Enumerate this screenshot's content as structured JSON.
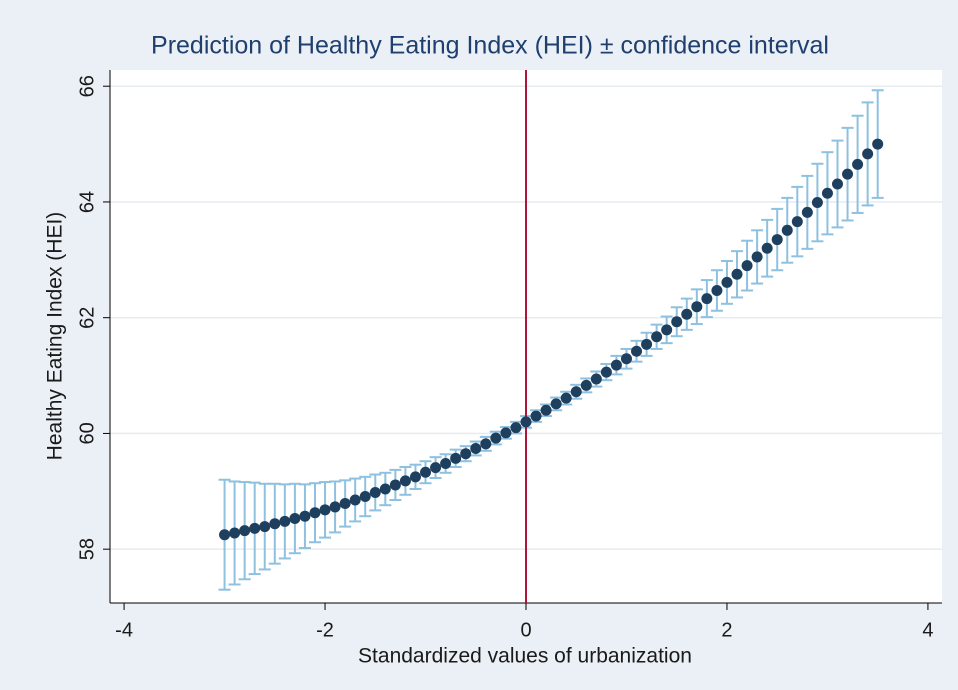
{
  "chart_data": {
    "type": "errorbar",
    "title": "Prediction of Healthy Eating Index (HEI) ± confidence interval",
    "x_label": "Standardized values of urbanization",
    "y_label": "Healthy Eating Index (HEI)",
    "x": [
      -3.0,
      -2.9,
      -2.8,
      -2.7,
      -2.6,
      -2.5,
      -2.4,
      -2.3,
      -2.2,
      -2.1,
      -2.0,
      -1.9,
      -1.8,
      -1.7,
      -1.6,
      -1.5,
      -1.4,
      -1.3,
      -1.2,
      -1.1,
      -1.0,
      -0.9,
      -0.8,
      -0.7,
      -0.6,
      -0.5,
      -0.4,
      -0.3,
      -0.2,
      -0.1,
      0,
      0.1,
      0.2,
      0.3,
      0.4,
      0.5,
      0.6,
      0.7,
      0.8,
      0.9,
      1.0,
      1.1,
      1.2,
      1.3,
      1.4,
      1.5,
      1.6,
      1.7,
      1.8,
      1.9,
      2.0,
      2.1,
      2.2,
      2.3,
      2.4,
      2.5,
      2.6,
      2.7,
      2.8,
      2.9,
      3.0,
      3.1,
      3.2,
      3.3,
      3.4,
      3.5
    ],
    "values": [
      58.25,
      58.28,
      58.32,
      58.36,
      58.39,
      58.44,
      58.48,
      58.53,
      58.57,
      58.63,
      58.68,
      58.73,
      58.79,
      58.85,
      58.91,
      58.98,
      59.04,
      59.11,
      59.18,
      59.25,
      59.33,
      59.41,
      59.48,
      59.57,
      59.65,
      59.74,
      59.82,
      59.92,
      60.01,
      60.1,
      60.2,
      60.3,
      60.4,
      60.51,
      60.61,
      60.72,
      60.83,
      60.94,
      61.06,
      61.18,
      61.29,
      61.42,
      61.54,
      61.67,
      61.79,
      61.93,
      62.06,
      62.19,
      62.33,
      62.47,
      62.61,
      62.75,
      62.9,
      63.05,
      63.2,
      63.35,
      63.51,
      63.66,
      63.82,
      63.99,
      64.15,
      64.31,
      64.48,
      64.65,
      64.83,
      65.0
    ],
    "errors": [
      0.95,
      0.89,
      0.84,
      0.79,
      0.74,
      0.69,
      0.64,
      0.6,
      0.55,
      0.51,
      0.48,
      0.44,
      0.4,
      0.37,
      0.34,
      0.31,
      0.28,
      0.26,
      0.24,
      0.21,
      0.19,
      0.18,
      0.16,
      0.15,
      0.13,
      0.12,
      0.12,
      0.11,
      0.1,
      0.1,
      0.1,
      0.1,
      0.1,
      0.11,
      0.11,
      0.12,
      0.12,
      0.13,
      0.14,
      0.16,
      0.17,
      0.18,
      0.2,
      0.21,
      0.23,
      0.25,
      0.27,
      0.3,
      0.32,
      0.35,
      0.37,
      0.4,
      0.43,
      0.46,
      0.49,
      0.53,
      0.56,
      0.6,
      0.63,
      0.67,
      0.71,
      0.75,
      0.8,
      0.84,
      0.89,
      0.93
    ],
    "color": "#1f3f5f",
    "error_color": "#8ec1e0",
    "xline": 0,
    "xline_color": "#b0163a",
    "xlim": [
      -4.14,
      4.14
    ],
    "xticks": [
      -4,
      -2,
      0,
      2,
      4
    ],
    "ylim": [
      57.07,
      66.28
    ],
    "yticks": [
      58,
      60,
      62,
      64,
      66
    ],
    "grid": true
  }
}
